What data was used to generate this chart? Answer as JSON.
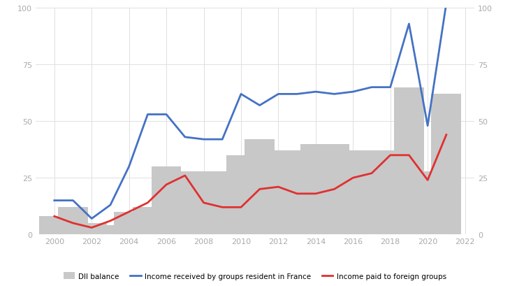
{
  "years": [
    2000,
    2001,
    2002,
    2003,
    2004,
    2005,
    2006,
    2007,
    2008,
    2009,
    2010,
    2011,
    2012,
    2013,
    2014,
    2015,
    2016,
    2017,
    2018,
    2019,
    2020,
    2021
  ],
  "dii_balance": [
    8,
    12,
    5,
    4,
    10,
    12,
    30,
    28,
    28,
    28,
    35,
    42,
    37,
    37,
    40,
    40,
    37,
    37,
    37,
    65,
    28,
    62
  ],
  "income_received": [
    15,
    15,
    7,
    13,
    30,
    53,
    53,
    43,
    42,
    42,
    62,
    57,
    62,
    62,
    63,
    62,
    63,
    65,
    65,
    93,
    48,
    102
  ],
  "income_paid": [
    8,
    5,
    3,
    6,
    10,
    14,
    22,
    26,
    14,
    12,
    12,
    20,
    21,
    18,
    18,
    20,
    25,
    27,
    35,
    35,
    24,
    44
  ],
  "bar_color": "#c8c8c8",
  "blue_color": "#4472c4",
  "red_color": "#e03030",
  "ylim": [
    0,
    100
  ],
  "xlim": [
    1999.0,
    2022.5
  ],
  "xticks": [
    2000,
    2002,
    2004,
    2006,
    2008,
    2010,
    2012,
    2014,
    2016,
    2018,
    2020,
    2022
  ],
  "yticks": [
    0,
    25,
    50,
    75,
    100
  ],
  "legend_labels": [
    "DII balance",
    "Income received by groups resident in France",
    "Income paid to foreign groups"
  ],
  "background_color": "#ffffff",
  "grid_color": "#e0e0e0",
  "tick_color": "#aaaaaa",
  "bar_width": 1.6,
  "line_width": 2.0,
  "figsize": [
    7.3,
    4.1
  ],
  "dpi": 100
}
